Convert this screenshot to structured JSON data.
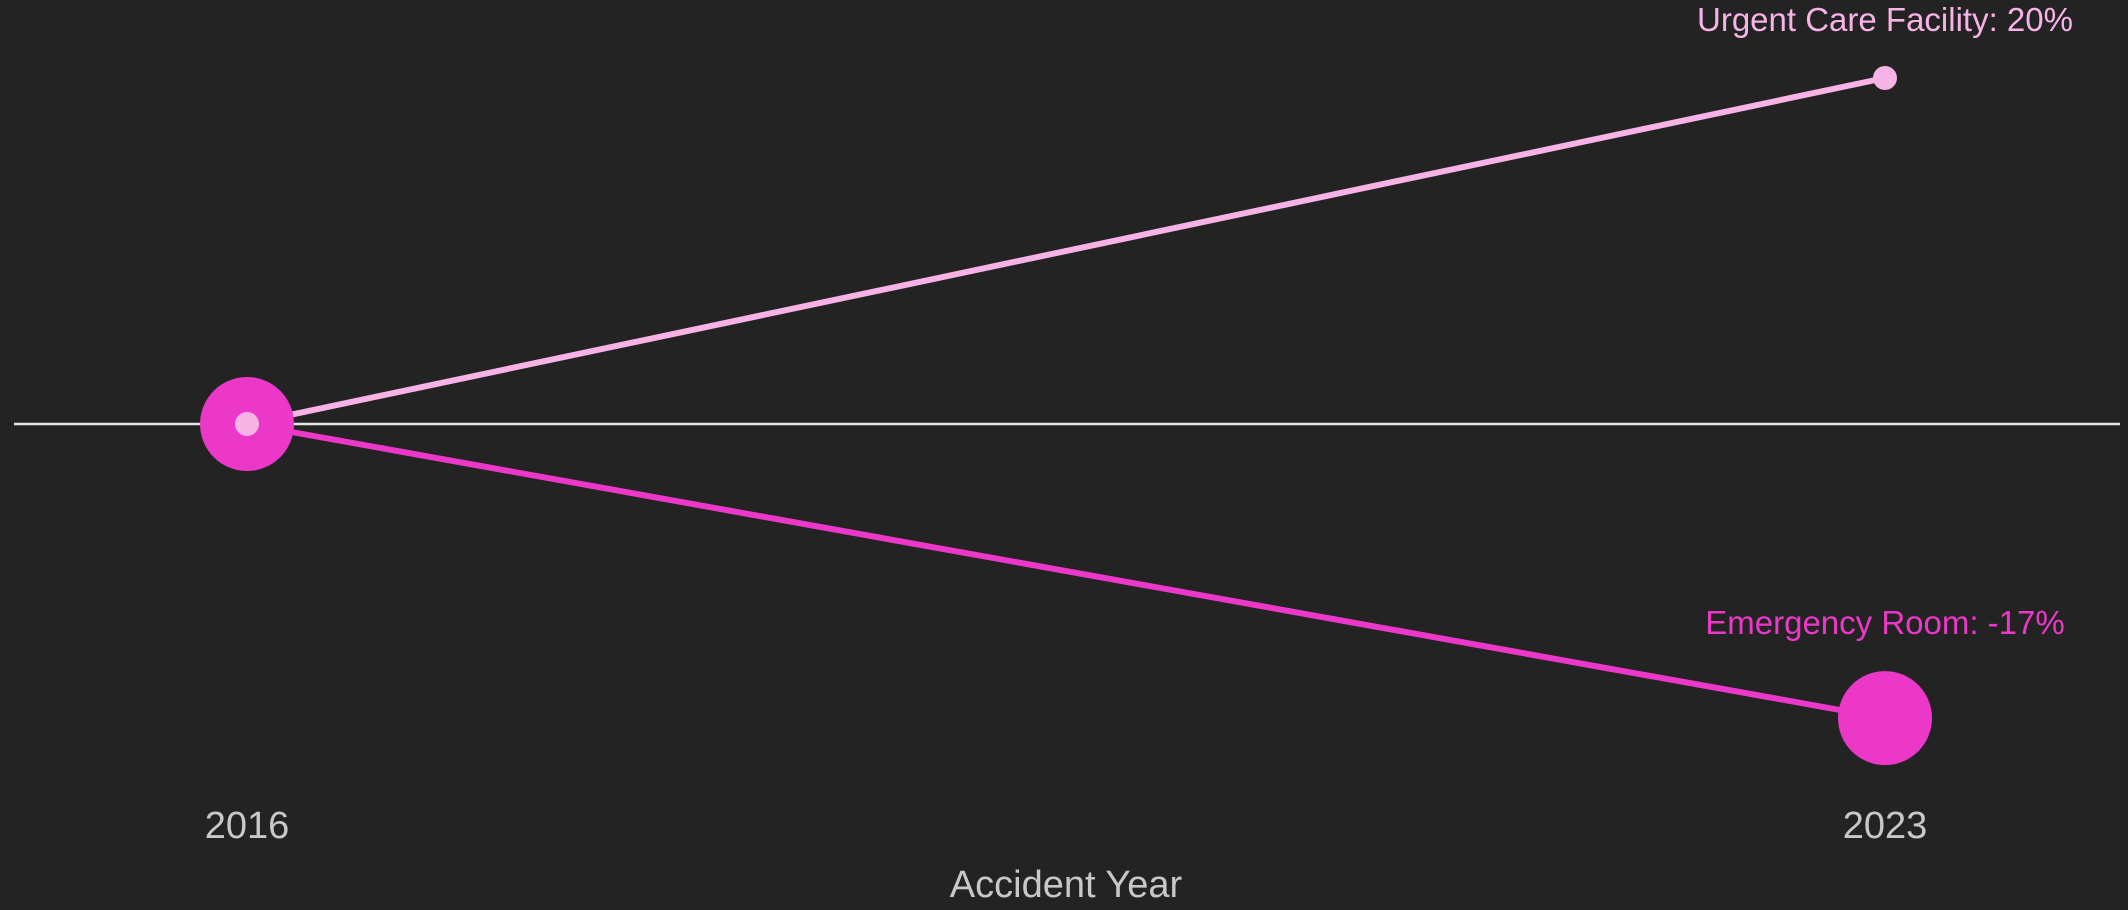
{
  "chart_data": {
    "type": "line",
    "title": "",
    "xlabel": "Accident Year",
    "ylabel": "",
    "x": [
      2016,
      2023
    ],
    "x_tick_labels": [
      "2016",
      "2023"
    ],
    "ylim": [
      -0.2,
      0.22
    ],
    "baseline": 0,
    "grid": false,
    "legend": "none",
    "series": [
      {
        "name": "Urgent Care Facility",
        "values": [
          0,
          0.2
        ],
        "end_label": "Urgent Care Facility: 20%",
        "color": "#f7b3e6",
        "marker_size": "small"
      },
      {
        "name": "Emergency Room",
        "values": [
          0,
          -0.17
        ],
        "end_label": "Emergency Room: -17%",
        "color": "#ec38c8",
        "marker_size": "large"
      }
    ]
  },
  "colors": {
    "background": "#232323",
    "baseline": "#e6e6e6",
    "axis_text": "#c8c8c8"
  }
}
